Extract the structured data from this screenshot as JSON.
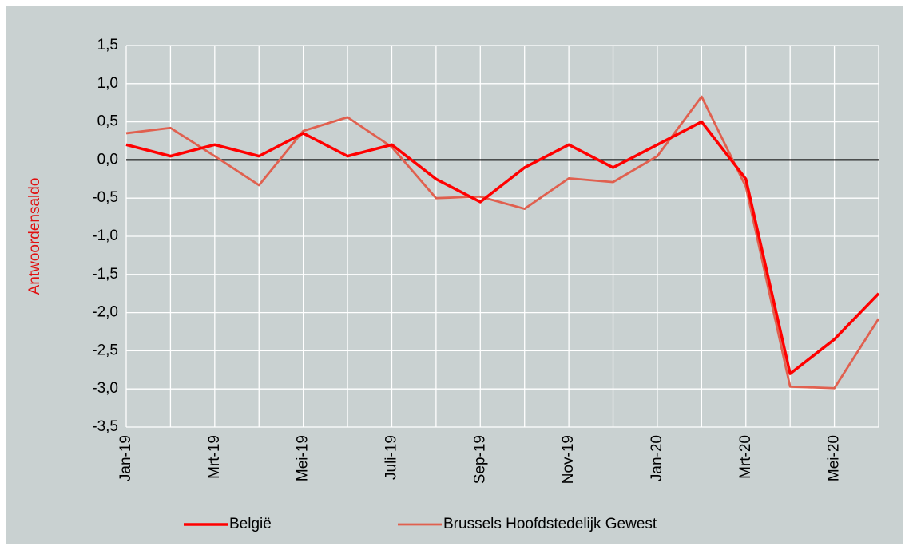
{
  "chart_data": {
    "type": "line",
    "y_label": "Antwoordensaldo",
    "categories": [
      "Jan-19",
      null,
      "Mrt-19",
      null,
      "Mei-19",
      null,
      "Juli-19",
      null,
      "Sep-19",
      null,
      "Nov-19",
      null,
      "Jan-20",
      null,
      "Mrt-20",
      null,
      "Mei-20",
      null
    ],
    "series": [
      {
        "name": "België",
        "color": "#ff0000",
        "values": [
          0.2,
          0.05,
          0.2,
          0.05,
          0.35,
          0.05,
          0.2,
          -0.25,
          -0.55,
          -0.1,
          0.2,
          -0.1,
          0.2,
          0.5,
          -0.25,
          -2.8,
          -2.35,
          -1.75
        ]
      },
      {
        "name": "Brussels Hoofdstedelijk Gewest",
        "color": "#e0604f",
        "values": [
          0.35,
          0.42,
          0.05,
          -0.33,
          0.38,
          0.56,
          0.17,
          -0.5,
          -0.48,
          -0.64,
          -0.24,
          -0.29,
          0.05,
          0.83,
          -0.35,
          -2.97,
          -2.99,
          -2.08
        ]
      }
    ],
    "ylim": [
      -3.5,
      1.5
    ],
    "yticks": [
      {
        "value": -3.5,
        "label": "-3,5"
      },
      {
        "value": -3,
        "label": "-3,0"
      },
      {
        "value": -2.5,
        "label": "-2,5"
      },
      {
        "value": -2,
        "label": "-2,0"
      },
      {
        "value": -1.5,
        "label": "-1,5"
      },
      {
        "value": -1,
        "label": "-1,0"
      },
      {
        "value": -0.5,
        "label": "-0,5"
      },
      {
        "value": 0,
        "label": "0,0"
      },
      {
        "value": 0.5,
        "label": "0,5"
      },
      {
        "value": 1,
        "label": "1,0"
      },
      {
        "value": 1.5,
        "label": "1,5"
      }
    ],
    "grid": true,
    "legend": "bottom"
  }
}
